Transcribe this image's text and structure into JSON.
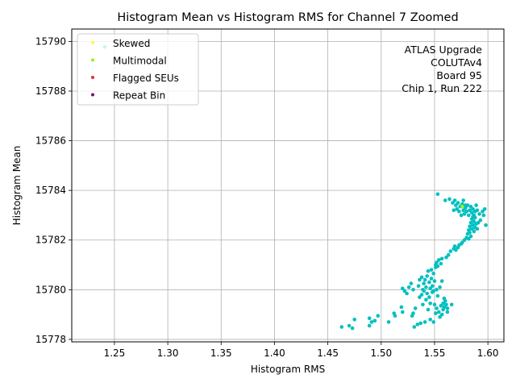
{
  "chart_data": {
    "type": "scatter",
    "title": "Histogram Mean vs Histogram RMS for Channel 7 Zoomed",
    "xlabel": "Histogram RMS",
    "ylabel": "Histogram Mean",
    "xlim": [
      1.21,
      1.615
    ],
    "ylim": [
      15777.9,
      15790.5
    ],
    "xticks": [
      "1.25",
      "1.30",
      "1.35",
      "1.40",
      "1.45",
      "1.50",
      "1.55",
      "1.60"
    ],
    "yticks": [
      "15778",
      "15780",
      "15782",
      "15784",
      "15786",
      "15788",
      "15790"
    ],
    "grid": true,
    "legend_position": "top-left",
    "legend": [
      {
        "label": "Skewed",
        "color": "#ffff33"
      },
      {
        "label": "Multimodal",
        "color": "#99ee22"
      },
      {
        "label": "Flagged SEUs",
        "color": "#e8283a"
      },
      {
        "label": "Repeat Bin",
        "color": "#7a0f72"
      }
    ],
    "annotation": [
      "ATLAS Upgrade",
      "COLUTAv4",
      "Board 95",
      "Chip 1, Run 222"
    ],
    "series": [
      {
        "color": "#00c0c0",
        "points": [
          [
            1.241,
            15789.78
          ],
          [
            1.463,
            15778.5
          ],
          [
            1.47,
            15778.55
          ],
          [
            1.473,
            15778.45
          ],
          [
            1.475,
            15778.8
          ],
          [
            1.489,
            15778.55
          ],
          [
            1.489,
            15778.85
          ],
          [
            1.491,
            15778.7
          ],
          [
            1.494,
            15778.75
          ],
          [
            1.497,
            15778.95
          ],
          [
            1.507,
            15778.7
          ],
          [
            1.512,
            15779.05
          ],
          [
            1.513,
            15778.95
          ],
          [
            1.519,
            15779.3
          ],
          [
            1.52,
            15779.1
          ],
          [
            1.52,
            15780.05
          ],
          [
            1.522,
            15779.95
          ],
          [
            1.524,
            15779.85
          ],
          [
            1.526,
            15780.1
          ],
          [
            1.528,
            15780.25
          ],
          [
            1.529,
            15778.95
          ],
          [
            1.53,
            15779.05
          ],
          [
            1.53,
            15780.0
          ],
          [
            1.531,
            15778.5
          ],
          [
            1.532,
            15779.25
          ],
          [
            1.534,
            15778.6
          ],
          [
            1.535,
            15780.15
          ],
          [
            1.536,
            15780.4
          ],
          [
            1.536,
            15779.7
          ],
          [
            1.537,
            15778.65
          ],
          [
            1.538,
            15779.8
          ],
          [
            1.538,
            15780.5
          ],
          [
            1.539,
            15779.4
          ],
          [
            1.539,
            15780.0
          ],
          [
            1.54,
            15780.25
          ],
          [
            1.54,
            15779.95
          ],
          [
            1.541,
            15778.7
          ],
          [
            1.541,
            15780.4
          ],
          [
            1.542,
            15779.6
          ],
          [
            1.542,
            15780.1
          ],
          [
            1.543,
            15779.85
          ],
          [
            1.543,
            15780.55
          ],
          [
            1.544,
            15780.75
          ],
          [
            1.544,
            15779.2
          ],
          [
            1.545,
            15780.3
          ],
          [
            1.545,
            15779.7
          ],
          [
            1.546,
            15780.05
          ],
          [
            1.546,
            15779.45
          ],
          [
            1.546,
            15778.8
          ],
          [
            1.547,
            15780.8
          ],
          [
            1.547,
            15780.45
          ],
          [
            1.548,
            15779.9
          ],
          [
            1.548,
            15780.15
          ],
          [
            1.549,
            15778.7
          ],
          [
            1.549,
            15779.95
          ],
          [
            1.549,
            15780.65
          ],
          [
            1.55,
            15779.4
          ],
          [
            1.55,
            15780.35
          ],
          [
            1.551,
            15779.05
          ],
          [
            1.551,
            15780.9
          ],
          [
            1.551,
            15781.0
          ],
          [
            1.552,
            15780.0
          ],
          [
            1.552,
            15779.25
          ],
          [
            1.552,
            15781.1
          ],
          [
            1.553,
            15780.95
          ],
          [
            1.553,
            15779.75
          ],
          [
            1.553,
            15783.85
          ],
          [
            1.554,
            15781.2
          ],
          [
            1.554,
            15779.1
          ],
          [
            1.555,
            15780.1
          ],
          [
            1.555,
            15778.9
          ],
          [
            1.556,
            15779.35
          ],
          [
            1.556,
            15781.05
          ],
          [
            1.557,
            15779.0
          ],
          [
            1.557,
            15781.25
          ],
          [
            1.557,
            15780.35
          ],
          [
            1.558,
            15779.45
          ],
          [
            1.558,
            15779.2
          ],
          [
            1.559,
            15779.65
          ],
          [
            1.559,
            15779.3
          ],
          [
            1.56,
            15779.55
          ],
          [
            1.56,
            15783.6
          ],
          [
            1.561,
            15779.4
          ],
          [
            1.561,
            15781.3
          ],
          [
            1.562,
            15779.1
          ],
          [
            1.562,
            15779.25
          ],
          [
            1.563,
            15781.4
          ],
          [
            1.564,
            15783.65
          ],
          [
            1.565,
            15781.55
          ],
          [
            1.566,
            15779.4
          ],
          [
            1.567,
            15783.5
          ],
          [
            1.568,
            15783.2
          ],
          [
            1.568,
            15781.65
          ],
          [
            1.569,
            15783.6
          ],
          [
            1.569,
            15781.75
          ],
          [
            1.57,
            15783.4
          ],
          [
            1.57,
            15781.6
          ],
          [
            1.571,
            15783.25
          ],
          [
            1.572,
            15783.5
          ],
          [
            1.572,
            15781.7
          ],
          [
            1.573,
            15783.15
          ],
          [
            1.573,
            15781.8
          ],
          [
            1.574,
            15783.35
          ],
          [
            1.575,
            15781.85
          ],
          [
            1.575,
            15783.0
          ],
          [
            1.576,
            15783.45
          ],
          [
            1.576,
            15781.9
          ],
          [
            1.577,
            15783.2
          ],
          [
            1.577,
            15783.6
          ],
          [
            1.578,
            15783.05
          ],
          [
            1.578,
            15782.0
          ],
          [
            1.579,
            15783.4
          ],
          [
            1.579,
            15783.3
          ],
          [
            1.58,
            15782.1
          ],
          [
            1.58,
            15783.15
          ],
          [
            1.581,
            15782.25
          ],
          [
            1.581,
            15783.4
          ],
          [
            1.582,
            15782.4
          ],
          [
            1.582,
            15782.05
          ],
          [
            1.582,
            15783.0
          ],
          [
            1.583,
            15782.55
          ],
          [
            1.583,
            15782.3
          ],
          [
            1.583,
            15783.2
          ],
          [
            1.584,
            15782.7
          ],
          [
            1.584,
            15782.15
          ],
          [
            1.584,
            15783.35
          ],
          [
            1.585,
            15782.85
          ],
          [
            1.585,
            15782.45
          ],
          [
            1.585,
            15783.1
          ],
          [
            1.586,
            15782.6
          ],
          [
            1.586,
            15782.95
          ],
          [
            1.586,
            15783.25
          ],
          [
            1.587,
            15782.35
          ],
          [
            1.587,
            15782.75
          ],
          [
            1.587,
            15783.0
          ],
          [
            1.588,
            15782.5
          ],
          [
            1.588,
            15782.9
          ],
          [
            1.588,
            15783.15
          ],
          [
            1.589,
            15782.65
          ],
          [
            1.589,
            15783.4
          ],
          [
            1.59,
            15782.45
          ],
          [
            1.59,
            15783.2
          ],
          [
            1.591,
            15782.7
          ],
          [
            1.592,
            15783.05
          ],
          [
            1.593,
            15782.8
          ],
          [
            1.595,
            15783.15
          ],
          [
            1.596,
            15783.0
          ],
          [
            1.597,
            15783.25
          ],
          [
            1.598,
            15782.6
          ]
        ]
      },
      {
        "color": "#99ee22",
        "points": [
          [
            1.576,
            15783.35
          ]
        ]
      }
    ]
  }
}
